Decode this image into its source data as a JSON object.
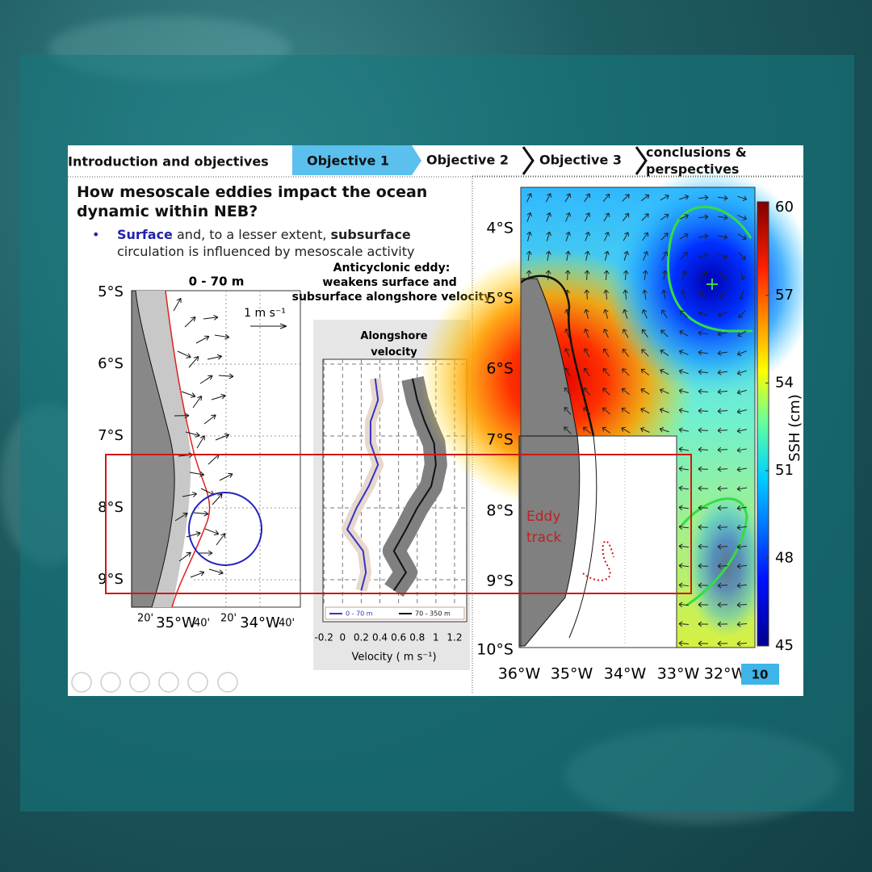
{
  "nav": {
    "tabs": [
      "Introduction and objectives",
      "Objective 1",
      "Objective 2",
      "Objective 3",
      "conclusions & perspectives"
    ]
  },
  "header": {
    "title": "How mesoscale eddies impact the ocean dynamic within NEB?"
  },
  "bullet": {
    "parts": [
      "Surface",
      " and, to a lesser extent, ",
      "subsurface",
      " circulation is influenced by mesoscale activity"
    ]
  },
  "left_map": {
    "title": "0 - 70 m",
    "lat_labels": [
      "5°S",
      "6°S",
      "7°S",
      "8°S",
      "9°S"
    ],
    "lon_labels": [
      "20'",
      "35°W",
      "40'",
      "20'",
      "34°W",
      "40'"
    ],
    "scale_label": "1 m s⁻¹"
  },
  "profile": {
    "caption": "Anticyclonic eddy: weakens surface and subsurface alongshore velocity",
    "title": "Alongshore velocity",
    "xlabel": "Velocity ( m s⁻¹)",
    "xlim": [
      -0.21,
      1.33
    ],
    "xticks": [
      -0.2,
      0,
      0.2,
      0.4,
      0.6,
      0.8,
      1,
      1.2
    ],
    "latitude": [
      6.2,
      6.5,
      6.8,
      7.1,
      7.4,
      7.7,
      8.0,
      8.3,
      8.6,
      8.9,
      9.15
    ],
    "series": [
      {
        "name": "0 - 70 m",
        "color": "#3535c8",
        "values": [
          0.35,
          0.38,
          0.3,
          0.3,
          0.38,
          0.28,
          0.15,
          0.05,
          0.22,
          0.25,
          0.2
        ]
      },
      {
        "name": "70 - 350 m",
        "color": "#111111",
        "values": [
          0.75,
          0.8,
          0.88,
          0.98,
          1.0,
          0.95,
          0.8,
          0.68,
          0.55,
          0.68,
          0.55
        ]
      }
    ]
  },
  "right_map": {
    "lat_labels": [
      "4°S",
      "5°S",
      "6°S",
      "7°S",
      "8°S",
      "9°S",
      "10°S"
    ],
    "lon_labels": [
      "36°W",
      "35°W",
      "34°W",
      "33°W",
      "32°W"
    ],
    "colorbar_label": "SSH (cm)",
    "clim": [
      45,
      60.2
    ],
    "colorbar_ticks": [
      45,
      48,
      51,
      54,
      57,
      60
    ],
    "inset_label": "Eddy track"
  },
  "footer": {
    "page": "10"
  }
}
